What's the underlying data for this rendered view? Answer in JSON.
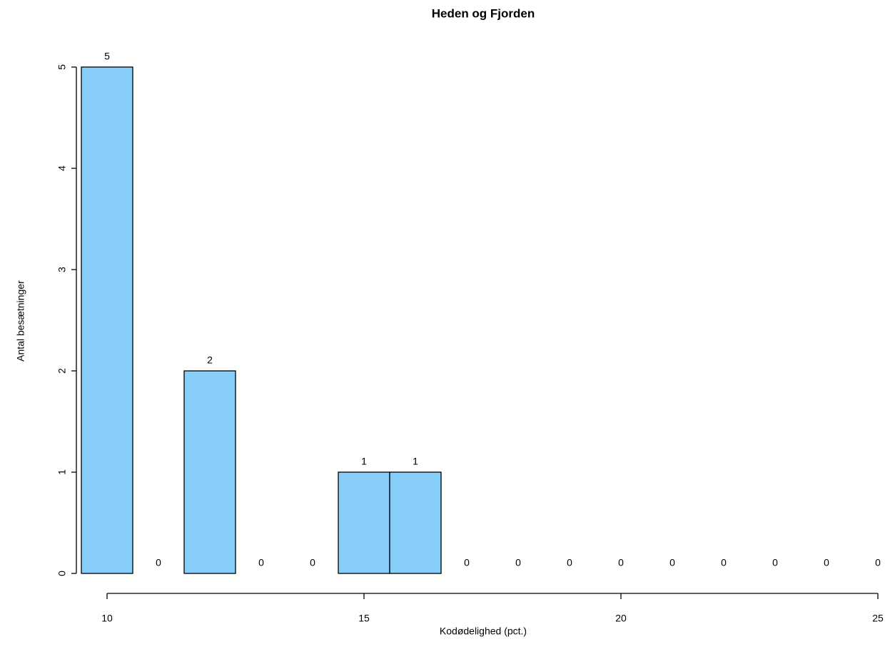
{
  "chart_data": {
    "type": "histogram",
    "title": "Heden og Fjorden",
    "x_label": "Kodødelighed (pct.)",
    "y_label": "Antal besætninger",
    "bins": [
      9.5,
      10.5,
      11.5,
      12.5,
      13.5,
      14.5,
      15.5,
      16.5,
      17.5,
      18.5,
      19.5,
      20.5,
      21.5,
      22.5,
      23.5,
      24.5,
      25.5
    ],
    "values": [
      5,
      0,
      2,
      0,
      0,
      1,
      1,
      0,
      0,
      0,
      0,
      0,
      0,
      0,
      0,
      0
    ],
    "color": "#87cefa",
    "xlim": [
      8.86,
      26.14
    ],
    "xticks": [
      10,
      15,
      20,
      25
    ],
    "ylim": [
      0,
      5
    ],
    "yticks": [
      0,
      1,
      2,
      3,
      4,
      5
    ]
  }
}
